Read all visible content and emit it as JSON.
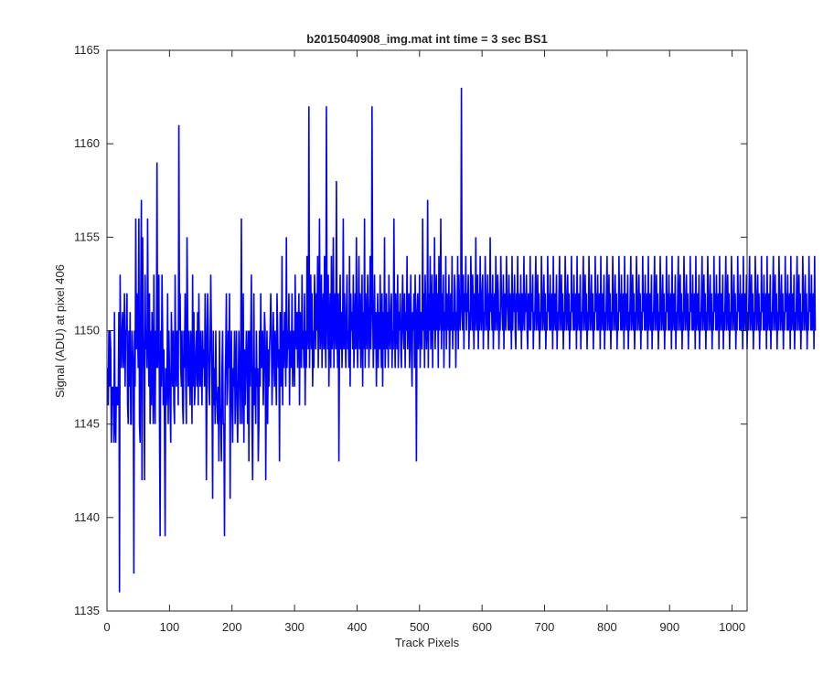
{
  "chart_data": {
    "type": "line",
    "title": "b2015040908_img.mat int time = 3 sec   BS1",
    "xlabel": "Track Pixels",
    "ylabel": "Signal (ADU) at pixel 406",
    "xlim": [
      0,
      1024
    ],
    "ylim": [
      1135,
      1165
    ],
    "xticks": [
      0,
      100,
      200,
      300,
      400,
      500,
      600,
      700,
      800,
      900,
      1000
    ],
    "yticks": [
      1135,
      1140,
      1145,
      1150,
      1155,
      1160,
      1165
    ],
    "grid": false,
    "line_color": "#0000ff",
    "series": [
      {
        "x_start": 1,
        "x_step": 1,
        "y": [
          1148,
          1146,
          1150,
          1147,
          1150,
          1149,
          1144,
          1147,
          1146,
          1147,
          1144,
          1151,
          1145,
          1144,
          1147,
          1146,
          1147,
          1146,
          1151,
          1136,
          1153,
          1149,
          1148,
          1150,
          1151,
          1148,
          1149,
          1152,
          1147,
          1150,
          1150,
          1152,
          1146,
          1145,
          1150,
          1147,
          1151,
          1145,
          1145,
          1150,
          1149,
          1148,
          1137,
          1150,
          1147,
          1156,
          1149,
          1152,
          1150,
          1148,
          1156,
          1145,
          1144,
          1152,
          1157,
          1142,
          1155,
          1150,
          1148,
          1142,
          1153,
          1149,
          1150,
          1148,
          1156,
          1150,
          1147,
          1152,
          1145,
          1150,
          1146,
          1151,
          1148,
          1145,
          1153,
          1147,
          1145,
          1150,
          1148,
          1159,
          1148,
          1150,
          1153,
          1145,
          1139,
          1150,
          1147,
          1153,
          1150,
          1146,
          1149,
          1145,
          1139,
          1148,
          1146,
          1147,
          1152,
          1145,
          1150,
          1148,
          1146,
          1144,
          1151,
          1149,
          1147,
          1150,
          1146,
          1145,
          1153,
          1148,
          1147,
          1150,
          1149,
          1146,
          1161,
          1150,
          1152,
          1148,
          1147,
          1150,
          1146,
          1145,
          1150,
          1148,
          1152,
          1147,
          1145,
          1155,
          1151,
          1147,
          1150,
          1148,
          1146,
          1150,
          1149,
          1145,
          1153,
          1147,
          1151,
          1146,
          1147,
          1149,
          1150,
          1147,
          1151,
          1146,
          1152,
          1148,
          1147,
          1150,
          1148,
          1146,
          1150,
          1148,
          1149,
          1147,
          1152,
          1150,
          1142,
          1148,
          1152,
          1150,
          1147,
          1146,
          1149,
          1153,
          1150,
          1147,
          1141,
          1150,
          1146,
          1148,
          1145,
          1150,
          1147,
          1146,
          1145,
          1147,
          1143,
          1150,
          1146,
          1145,
          1143,
          1148,
          1150,
          1145,
          1145,
          1139,
          1147,
          1149,
          1152,
          1146,
          1147,
          1150,
          1148,
          1152,
          1141,
          1148,
          1150,
          1146,
          1144,
          1148,
          1147,
          1150,
          1145,
          1148,
          1150,
          1146,
          1144,
          1147,
          1150,
          1148,
          1145,
          1149,
          1156,
          1145,
          1148,
          1152,
          1144,
          1149,
          1146,
          1148,
          1150,
          1148,
          1145,
          1150,
          1143,
          1150,
          1147,
          1150,
          1153,
          1145,
          1142,
          1148,
          1152,
          1146,
          1148,
          1145,
          1150,
          1147,
          1148,
          1143,
          1145,
          1150,
          1147,
          1152,
          1148,
          1149,
          1150,
          1146,
          1148,
          1151,
          1150,
          1142,
          1148,
          1150,
          1145,
          1149,
          1147,
          1149,
          1150,
          1152,
          1150,
          1146,
          1148,
          1151,
          1149,
          1147,
          1150,
          1148,
          1146,
          1152,
          1150,
          1148,
          1149,
          1143,
          1151,
          1150,
          1147,
          1154,
          1146,
          1150,
          1148,
          1151,
          1150,
          1147,
          1155,
          1148,
          1150,
          1149,
          1152,
          1146,
          1149,
          1150,
          1148,
          1152,
          1147,
          1150,
          1149,
          1147,
          1153,
          1150,
          1149,
          1151,
          1148,
          1150,
          1152,
          1146,
          1151,
          1150,
          1148,
          1153,
          1149,
          1150,
          1148,
          1152,
          1146,
          1150,
          1148,
          1154,
          1150,
          1149,
          1162,
          1148,
          1151,
          1153,
          1149,
          1152,
          1147,
          1150,
          1148,
          1153,
          1151,
          1149,
          1152,
          1150,
          1154,
          1148,
          1151,
          1156,
          1149,
          1150,
          1153,
          1148,
          1151,
          1152,
          1149,
          1154,
          1150,
          1148,
          1162,
          1151,
          1149,
          1153,
          1147,
          1150,
          1152,
          1148,
          1154,
          1149,
          1150,
          1155,
          1148,
          1152,
          1151,
          1149,
          1158,
          1150,
          1148,
          1152,
          1143,
          1150,
          1153,
          1149,
          1151,
          1148,
          1150,
          1156,
          1149,
          1152,
          1150,
          1148,
          1151,
          1153,
          1149,
          1150,
          1148,
          1154,
          1147,
          1152,
          1150,
          1151,
          1149,
          1153,
          1148,
          1150,
          1152,
          1149,
          1155,
          1150,
          1148,
          1151,
          1154,
          1149,
          1152,
          1148,
          1150,
          1153,
          1147,
          1151,
          1149,
          1156,
          1148,
          1152,
          1150,
          1149,
          1153,
          1151,
          1148,
          1150,
          1154,
          1149,
          1151,
          1162,
          1152,
          1148,
          1150,
          1153,
          1149,
          1151,
          1147,
          1150,
          1152,
          1148,
          1151,
          1149,
          1153,
          1150,
          1148,
          1152,
          1147,
          1151,
          1149,
          1155,
          1148,
          1150,
          1152,
          1149,
          1151,
          1148,
          1153,
          1150,
          1149,
          1151,
          1152,
          1148,
          1150,
          1149,
          1156,
          1151,
          1148,
          1152,
          1150,
          1149,
          1153,
          1148,
          1151,
          1150,
          1152,
          1149,
          1148,
          1151,
          1153,
          1150,
          1149,
          1152,
          1148,
          1151,
          1150,
          1154,
          1149,
          1151,
          1152,
          1148,
          1150,
          1153,
          1149,
          1147,
          1151,
          1150,
          1152,
          1148,
          1153,
          1150,
          1143,
          1151,
          1152,
          1149,
          1150,
          1153,
          1148,
          1151,
          1150,
          1149,
          1156,
          1150,
          1152,
          1148,
          1153,
          1151,
          1149,
          1150,
          1157,
          1148,
          1152,
          1150,
          1154,
          1149,
          1151,
          1153,
          1148,
          1152,
          1150,
          1155,
          1149,
          1151,
          1153,
          1150,
          1152,
          1148,
          1154,
          1150,
          1151,
          1156,
          1149,
          1152,
          1150,
          1153,
          1148,
          1151,
          1150,
          1154,
          1149,
          1152,
          1151,
          1150,
          1153,
          1148,
          1151,
          1152,
          1150,
          1154,
          1149,
          1151,
          1150,
          1153,
          1152,
          1148,
          1151,
          1150,
          1154,
          1149,
          1153,
          1151,
          1150,
          1152,
          1163,
          1151,
          1150,
          1153,
          1149,
          1152,
          1151,
          1154,
          1150,
          1152,
          1151,
          1153,
          1149,
          1151,
          1150,
          1154,
          1152,
          1150,
          1153,
          1151,
          1149,
          1152,
          1150,
          1155,
          1151,
          1150,
          1153,
          1149,
          1152,
          1150,
          1154,
          1151,
          1150,
          1152,
          1153,
          1149,
          1151,
          1150,
          1154,
          1152,
          1150,
          1151,
          1153,
          1149,
          1152,
          1150,
          1155,
          1151,
          1152,
          1150,
          1153,
          1149,
          1151,
          1152,
          1150,
          1154,
          1151,
          1150,
          1153,
          1152,
          1149,
          1151,
          1150,
          1154,
          1152,
          1151,
          1150,
          1153,
          1149,
          1152,
          1151,
          1150,
          1154,
          1152,
          1151,
          1150,
          1153,
          1150,
          1152,
          1151,
          1149,
          1154,
          1150,
          1152,
          1151,
          1153,
          1150,
          1149,
          1152,
          1151,
          1154,
          1150,
          1152,
          1151,
          1150,
          1153,
          1149,
          1152,
          1150,
          1151,
          1154,
          1150,
          1152,
          1151,
          1153,
          1150,
          1149,
          1152,
          1151,
          1150,
          1154,
          1150,
          1152,
          1151,
          1153,
          1149,
          1151,
          1150,
          1152,
          1154,
          1150,
          1151,
          1153,
          1150,
          1152,
          1149,
          1151,
          1150,
          1154,
          1152,
          1150,
          1151,
          1153,
          1150,
          1152,
          1149,
          1151,
          1150,
          1154,
          1151,
          1152,
          1150,
          1153,
          1150,
          1151,
          1152,
          1149,
          1154,
          1150,
          1151,
          1152,
          1150,
          1153,
          1149,
          1151,
          1150,
          1152,
          1154,
          1150,
          1151,
          1153,
          1150,
          1152,
          1149,
          1151,
          1150,
          1154,
          1152,
          1150,
          1151,
          1153,
          1150,
          1152,
          1149,
          1151,
          1150,
          1154,
          1151,
          1152,
          1150,
          1153,
          1150,
          1151,
          1152,
          1149,
          1154,
          1150,
          1151,
          1152,
          1150,
          1153,
          1149,
          1151,
          1150,
          1152,
          1154,
          1150,
          1151,
          1153,
          1150,
          1152,
          1149,
          1151,
          1150,
          1154,
          1152,
          1150,
          1151,
          1153,
          1150,
          1152,
          1149,
          1151,
          1150,
          1154,
          1151,
          1152,
          1150,
          1153,
          1150,
          1151,
          1152,
          1149,
          1154,
          1150,
          1151,
          1152,
          1150,
          1153,
          1149,
          1151,
          1150,
          1152,
          1154,
          1150,
          1151,
          1153,
          1150,
          1152,
          1149,
          1151,
          1150,
          1154,
          1152,
          1150,
          1151,
          1153,
          1150,
          1152,
          1149,
          1151,
          1150,
          1154,
          1151,
          1152,
          1150,
          1153,
          1150,
          1151,
          1152,
          1149,
          1154,
          1150,
          1151,
          1152,
          1150,
          1153,
          1149,
          1151,
          1150,
          1152,
          1154,
          1150,
          1151,
          1153,
          1150,
          1152,
          1149,
          1151,
          1150,
          1154,
          1152,
          1150,
          1151,
          1153,
          1150,
          1152,
          1149,
          1151,
          1150,
          1154,
          1151,
          1152,
          1150,
          1153,
          1150,
          1151,
          1152,
          1149,
          1154,
          1150,
          1151,
          1152,
          1150,
          1153,
          1149,
          1151,
          1150,
          1152,
          1154,
          1150,
          1151,
          1153,
          1150,
          1152,
          1149,
          1151,
          1150,
          1154,
          1152,
          1150,
          1151,
          1153,
          1150,
          1152,
          1149,
          1151,
          1150,
          1154,
          1151,
          1152,
          1150,
          1153,
          1150,
          1151,
          1152,
          1149,
          1154,
          1150,
          1151,
          1152,
          1150,
          1153,
          1149,
          1151,
          1150,
          1152,
          1154,
          1150,
          1151,
          1153,
          1150,
          1152,
          1149,
          1151,
          1150,
          1154,
          1152,
          1150,
          1151,
          1153,
          1150,
          1152,
          1149,
          1151,
          1150,
          1154,
          1151,
          1152,
          1150,
          1153,
          1150,
          1151,
          1152,
          1149,
          1154,
          1150,
          1151,
          1152,
          1150,
          1153,
          1149,
          1151,
          1150,
          1152,
          1154,
          1150,
          1151,
          1153,
          1150,
          1152,
          1149,
          1151,
          1150,
          1154,
          1152,
          1150,
          1151,
          1153,
          1150,
          1152,
          1149,
          1151,
          1150,
          1154,
          1151,
          1152,
          1150,
          1153,
          1150,
          1151,
          1152,
          1149,
          1154,
          1150,
          1151,
          1152,
          1150,
          1153,
          1149,
          1151,
          1150,
          1152,
          1154,
          1150,
          1151,
          1153,
          1150,
          1152,
          1149,
          1151,
          1150,
          1154,
          1152,
          1150,
          1151,
          1153,
          1150,
          1152,
          1149,
          1151,
          1150,
          1154,
          1151,
          1152,
          1150,
          1153,
          1150,
          1151,
          1152,
          1149,
          1154,
          1150,
          1151,
          1152,
          1150,
          1153,
          1149,
          1151,
          1150,
          1152,
          1154,
          1150,
          1151,
          1153,
          1150,
          1152,
          1149,
          1151,
          1150,
          1154,
          1152,
          1150,
          1151,
          1153,
          1150,
          1152,
          1149,
          1151,
          1150,
          1154,
          1151,
          1152,
          1150,
          1153,
          1150,
          1151,
          1152,
          1149,
          1154,
          1150,
          1151,
          1152,
          1150,
          1153,
          1149,
          1151,
          1150,
          1152,
          1154,
          1150,
          1151,
          1153,
          1150,
          1152,
          1149,
          1151,
          1150,
          1154,
          1152,
          1150,
          1151,
          1153,
          1150,
          1152,
          1149,
          1151,
          1150,
          1154,
          1151,
          1152,
          1150,
          1153,
          1150,
          1151,
          1152,
          1149,
          1154,
          1150,
          1151,
          1152,
          1150,
          1153,
          1149,
          1151,
          1150,
          1152,
          1154,
          1150,
          1151,
          1153,
          1150,
          1152,
          1149,
          1151,
          1150,
          1154,
          1152,
          1150,
          1151,
          1153,
          1150,
          1152,
          1149,
          1151,
          1150,
          1154,
          1151,
          1152,
          1150,
          1153,
          1150,
          1151,
          1152,
          1149,
          1154,
          1150
        ]
      }
    ]
  }
}
